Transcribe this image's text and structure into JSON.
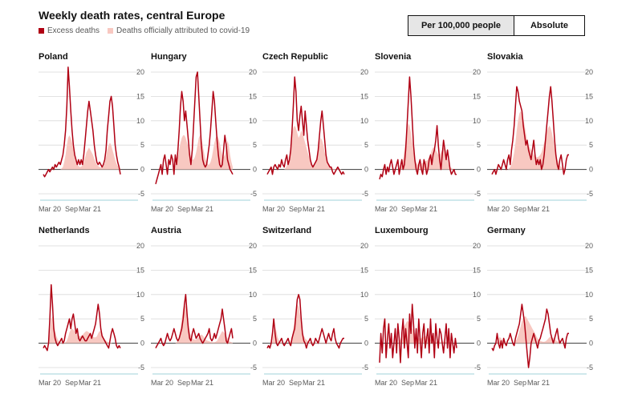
{
  "title": "Weekly death rates, central Europe",
  "legend": {
    "excess": "Excess deaths",
    "official": "Deaths officially attributed to covid-19"
  },
  "toggle": {
    "per100k": "Per 100,000 people",
    "absolute": "Absolute"
  },
  "colors": {
    "excess": "#b00013",
    "official": "#f8c8c1",
    "grid": "#d9d9d9",
    "zero": "#3a3a3a",
    "xaxis": "#9fd0d9"
  },
  "axis": {
    "y_ticks": [
      "20",
      "15",
      "10",
      "5",
      "0",
      "-5"
    ],
    "x_ticks": [
      "Mar 20",
      "Sep",
      "Mar 21"
    ]
  },
  "chart_data": {
    "type": "line",
    "title": "Weekly death rates, central Europe",
    "ylabel": "Per 100,000 people",
    "ylim": [
      -5,
      20
    ],
    "x_start": "Mar 20",
    "weeks": 60,
    "panels": [
      {
        "name": "Poland",
        "excess": [
          -1,
          -1.5,
          -1,
          -0.5,
          0,
          -0.5,
          0,
          0.5,
          0,
          1,
          0.5,
          1,
          1.5,
          1,
          2,
          3,
          5,
          8,
          13,
          21,
          17,
          12,
          8,
          5,
          3,
          2,
          1,
          2,
          1,
          2,
          1,
          3,
          6,
          9,
          12,
          14,
          12,
          10,
          8,
          5,
          3,
          1.5,
          1,
          1.5,
          1,
          0.5,
          1,
          2,
          4,
          8,
          11,
          14,
          15,
          13,
          9,
          5,
          3,
          1.5,
          0.5,
          -1
        ],
        "official": [
          0,
          0,
          0,
          0,
          0,
          0,
          0,
          0,
          0,
          0,
          0,
          0,
          0,
          0,
          0.2,
          0.5,
          1.5,
          3,
          5,
          6.5,
          7,
          6.5,
          5.5,
          4,
          2.5,
          1.5,
          1,
          0.7,
          0.5,
          0.6,
          0.8,
          1.5,
          2.5,
          3.5,
          4,
          4.5,
          4,
          3.5,
          3,
          2.2,
          1.5,
          1,
          0.7,
          0.5,
          0.4,
          0.4,
          0.6,
          1.2,
          2.5,
          4,
          5,
          5.5,
          5,
          4,
          3,
          2,
          1.2,
          0.7,
          0.4,
          0.2
        ]
      },
      {
        "name": "Hungary",
        "excess": [
          -3,
          -2,
          -1,
          0,
          1,
          -1,
          2,
          3,
          1,
          -1,
          2,
          1,
          3,
          2,
          -1,
          3,
          1,
          4,
          8,
          13,
          16,
          14,
          10,
          12,
          9,
          6,
          3,
          1,
          4,
          9,
          14,
          19,
          20,
          15,
          10,
          5,
          2,
          1,
          0.5,
          1,
          3,
          5,
          8,
          12,
          16,
          14,
          10,
          6,
          3,
          1,
          0.5,
          1,
          4,
          7,
          5,
          2,
          1,
          0,
          -0.5,
          -1
        ],
        "official": [
          0,
          0,
          0,
          0,
          0,
          0,
          0,
          0,
          0,
          0,
          0,
          0,
          0,
          0.2,
          0.5,
          1,
          1.5,
          2.5,
          4,
          5.5,
          6.5,
          7,
          7,
          6.5,
          5.5,
          4.5,
          3.5,
          2.5,
          2,
          2,
          2.5,
          3.5,
          5,
          6.5,
          7,
          6.5,
          5,
          3.5,
          2.2,
          1.5,
          1,
          1,
          1.5,
          2.5,
          4,
          5.5,
          6.5,
          7,
          6.5,
          5.5,
          4,
          3,
          2.5,
          3,
          4.5,
          6,
          5,
          3,
          1.5,
          0.5
        ]
      },
      {
        "name": "Czech Republic",
        "excess": [
          -1,
          -0.5,
          0,
          0.5,
          -1,
          0.5,
          1,
          0.5,
          0,
          1,
          0.5,
          2,
          1,
          0.5,
          2,
          3,
          1,
          2,
          4,
          8,
          13,
          19,
          16,
          10,
          8,
          11,
          13,
          10,
          7,
          12,
          9,
          6,
          4,
          2,
          1,
          0.5,
          1,
          1.5,
          2,
          4,
          7,
          10,
          12,
          9,
          6,
          3,
          1.5,
          1,
          0.5,
          0.5,
          -0.5,
          -1,
          -0.5,
          0,
          0.5,
          0,
          -0.5,
          -1,
          -0.5,
          -1
        ],
        "official": [
          0,
          0,
          0,
          0,
          0,
          0,
          0,
          0,
          0,
          0,
          0,
          0,
          0,
          0,
          0.3,
          0.8,
          1.5,
          3,
          5,
          7,
          8.5,
          9,
          8.5,
          7.5,
          6.5,
          7,
          8,
          7.5,
          6.5,
          5.5,
          4.5,
          3.5,
          2.5,
          1.5,
          1,
          0.8,
          1,
          1.5,
          2.5,
          4,
          5.5,
          6.5,
          6,
          5,
          3.5,
          2.5,
          1.5,
          1,
          0.6,
          0.4,
          0.2,
          0.1,
          0.1,
          0.1,
          0.1,
          0.1,
          0.1,
          0,
          0,
          0
        ]
      },
      {
        "name": "Slovenia",
        "excess": [
          -2,
          -1,
          -1.5,
          0,
          1,
          -1,
          0.5,
          -0.5,
          1,
          2,
          0.5,
          -1,
          0,
          1,
          2,
          -1,
          0.5,
          2,
          0,
          1,
          4,
          9,
          14,
          19,
          15,
          10,
          5,
          2,
          0,
          -1,
          1,
          2,
          0,
          -1,
          2,
          1,
          -1,
          0,
          2,
          3,
          1,
          3,
          4,
          6,
          9,
          5,
          2,
          0,
          3,
          6,
          4,
          2,
          4,
          2,
          0,
          -1,
          -0.5,
          0,
          -1,
          -1
        ],
        "official": [
          0,
          0,
          0,
          0,
          0,
          0,
          0,
          0,
          0,
          0,
          0,
          0,
          0,
          0,
          0,
          0.2,
          0.5,
          1,
          2,
          4,
          6,
          8,
          9.5,
          9,
          7.5,
          5.5,
          3.5,
          2.2,
          1.4,
          1,
          1,
          1,
          1.2,
          1.3,
          1.5,
          1.7,
          1.8,
          2,
          2.5,
          3.2,
          4,
          4.5,
          4.5,
          4,
          3.5,
          3,
          3,
          3.5,
          4,
          4.5,
          4,
          3,
          2,
          1,
          0.5,
          0.3,
          0.1,
          0,
          0,
          0
        ]
      },
      {
        "name": "Slovakia",
        "excess": [
          -1,
          -0.5,
          0,
          -1,
          0,
          1,
          0.5,
          0,
          1,
          2,
          1,
          0,
          2,
          3,
          1,
          4,
          6,
          9,
          13,
          17,
          16,
          14,
          13,
          12,
          9,
          7,
          5,
          6,
          4,
          3,
          2,
          4,
          6,
          3,
          1,
          2,
          1,
          2,
          0,
          1,
          3,
          6,
          9,
          12,
          15,
          17,
          14,
          10,
          6,
          3,
          1,
          0,
          2,
          3,
          1,
          -1,
          0,
          2,
          3,
          3
        ],
        "official": [
          0,
          0,
          0,
          0,
          0,
          0,
          0,
          0,
          0,
          0,
          0,
          0,
          0,
          0.2,
          0.5,
          1,
          2,
          3.5,
          5.5,
          8,
          10,
          11.5,
          12,
          11.5,
          10.5,
          9,
          7.5,
          6,
          5,
          4.5,
          4,
          3.5,
          3,
          2.7,
          2.5,
          2.5,
          2.7,
          3,
          3.5,
          4.5,
          5.5,
          6.5,
          7.5,
          8.5,
          9,
          8.5,
          7.5,
          6,
          4.5,
          3,
          2,
          1.2,
          0.8,
          0.5,
          0.3,
          0.2,
          0.1,
          0,
          0,
          0
        ]
      },
      {
        "name": "Netherlands",
        "excess": [
          -1,
          -0.5,
          -1,
          -1.5,
          0,
          5,
          12,
          8,
          3,
          1,
          0,
          -0.5,
          0,
          0.5,
          1,
          0,
          0.5,
          2,
          3,
          4,
          5,
          3,
          5,
          6,
          4,
          2,
          3,
          1,
          0.5,
          1,
          1.5,
          1,
          0.5,
          0.5,
          1,
          1.5,
          2,
          1,
          2,
          3,
          4,
          6,
          8,
          6,
          3,
          1.5,
          1,
          0.5,
          0,
          -0.5,
          -1,
          0.5,
          2,
          3,
          2,
          1,
          -0.5,
          -1,
          -0.5,
          -1
        ],
        "official": [
          0,
          0,
          0,
          0,
          0.5,
          2,
          5,
          5.5,
          4,
          2.5,
          1.5,
          0.8,
          0.4,
          0.2,
          0.1,
          0.1,
          0.1,
          0.2,
          0.5,
          1.2,
          2.2,
          2.8,
          3,
          2.8,
          2.4,
          2,
          1.8,
          1.6,
          1.4,
          1.5,
          1.7,
          2,
          2.3,
          2.5,
          2.4,
          2.2,
          1.8,
          1.5,
          1.3,
          1.2,
          1.2,
          1.4,
          2,
          2.5,
          2.4,
          1.8,
          1.2,
          0.8,
          0.5,
          0.3,
          0.2,
          0.1,
          0.1,
          0,
          0,
          0,
          0,
          0,
          0,
          0
        ]
      },
      {
        "name": "Austria",
        "excess": [
          -1,
          -0.5,
          0,
          0.5,
          1,
          0,
          -0.5,
          0,
          1,
          2,
          1,
          0.5,
          1,
          2,
          3,
          2,
          1,
          0.5,
          1,
          2,
          3,
          5,
          8,
          10,
          6,
          3,
          1,
          0.5,
          2,
          3,
          2,
          1,
          1.5,
          2,
          1,
          0.5,
          0,
          0.5,
          1,
          1.5,
          2,
          3,
          1,
          0.5,
          1,
          2,
          1,
          2,
          3,
          4,
          5,
          7,
          5,
          3,
          0.5,
          0,
          1,
          2,
          3,
          1
        ],
        "official": [
          0,
          0,
          0,
          0,
          0,
          0,
          0,
          0,
          0,
          0,
          0,
          0,
          0,
          0,
          0,
          0,
          0.2,
          0.5,
          1.5,
          3,
          5,
          7,
          8,
          7.5,
          6,
          4,
          2.5,
          1.5,
          1,
          0.8,
          0.7,
          0.7,
          1,
          1.3,
          1.6,
          1.8,
          1.6,
          1.2,
          0.8,
          0.6,
          0.5,
          0.4,
          0.3,
          0.2,
          0.2,
          0.2,
          0.3,
          0.5,
          1,
          1.5,
          2,
          2.5,
          2.3,
          2,
          1.5,
          1,
          0.6,
          0.3,
          0.2,
          0.1
        ]
      },
      {
        "name": "Switzerland",
        "excess": [
          -1,
          -0.5,
          -1,
          0,
          2,
          5,
          2,
          0,
          -0.5,
          0,
          0.5,
          1,
          0,
          -0.5,
          0,
          0.5,
          1,
          0,
          -0.5,
          1,
          2,
          3,
          6,
          9,
          10,
          9,
          5,
          2,
          0.5,
          0,
          -1,
          0,
          0.5,
          1,
          0,
          -0.5,
          0,
          1,
          0.5,
          0,
          1,
          2,
          3,
          2,
          1,
          0,
          1,
          2,
          1,
          0.5,
          2,
          3,
          1,
          0,
          -0.5,
          -1,
          0,
          0.5,
          1,
          1
        ],
        "official": [
          0,
          0,
          0,
          0,
          0.5,
          2.5,
          3.5,
          2.5,
          1.2,
          0.6,
          0.3,
          0.1,
          0.1,
          0,
          0,
          0,
          0,
          0.1,
          0.5,
          1.5,
          3,
          5,
          7,
          8,
          7.5,
          6,
          4,
          2.5,
          1.5,
          1,
          0.7,
          0.5,
          0.3,
          0.2,
          0.2,
          0.2,
          0.1,
          0.1,
          0.1,
          0.1,
          0.1,
          0.1,
          0.1,
          0.1,
          0.1,
          0.1,
          0.1,
          0.1,
          0.1,
          0.1,
          0.1,
          0.1,
          0.1,
          0,
          0,
          0,
          0,
          0,
          0,
          0
        ]
      },
      {
        "name": "Luxembourg",
        "excess": [
          -4,
          2,
          -2,
          3,
          5,
          -3,
          1,
          4,
          -1,
          2,
          -3,
          0,
          3,
          -2,
          4,
          1,
          -4,
          2,
          5,
          -1,
          3,
          0,
          -3,
          6,
          2,
          8,
          4,
          -1,
          3,
          -2,
          5,
          1,
          -3,
          2,
          4,
          -1,
          1,
          3,
          -2,
          5,
          0,
          2,
          -3,
          4,
          1,
          -1,
          3,
          2,
          0,
          -2,
          1,
          4,
          -1,
          3,
          -3,
          2,
          0,
          -2,
          1,
          -1
        ],
        "official": [
          0,
          0,
          0,
          0,
          0,
          0,
          0,
          0,
          0,
          0,
          0,
          0,
          0,
          0,
          0,
          0.3,
          0.8,
          1.5,
          2.5,
          3.5,
          4,
          4.5,
          4.5,
          4,
          3.5,
          3,
          2.5,
          2,
          1.5,
          1.2,
          1,
          1,
          1,
          1.2,
          1.4,
          1.5,
          1.4,
          1.2,
          1,
          0.8,
          0.6,
          0.5,
          0.4,
          0.3,
          0.3,
          0.3,
          0.3,
          0.3,
          0.3,
          0.3,
          0.3,
          0.3,
          0.3,
          0.3,
          0.2,
          0.2,
          0.1,
          0,
          0,
          0
        ]
      },
      {
        "name": "Germany",
        "excess": [
          -1,
          -1.5,
          -0.5,
          0,
          2,
          0,
          -1,
          0.5,
          -1,
          1,
          0,
          -0.5,
          0.5,
          1,
          2,
          1,
          0,
          -0.5,
          1,
          2,
          3,
          4,
          6,
          8,
          6,
          4,
          1,
          -2,
          -5,
          -3,
          0,
          1,
          2,
          1,
          0,
          -1,
          0.5,
          1,
          2,
          3,
          4,
          5,
          7,
          6,
          4,
          2,
          1,
          0,
          1,
          2,
          3,
          1,
          0,
          0.5,
          1,
          0,
          -1,
          1,
          2,
          2
        ],
        "official": [
          0,
          0,
          0,
          0,
          0.3,
          1,
          1.3,
          1,
          0.6,
          0.3,
          0.2,
          0.1,
          0.1,
          0,
          0,
          0,
          0,
          0.1,
          0.3,
          0.8,
          1.5,
          2.5,
          3.5,
          4.5,
          5,
          5.5,
          5.5,
          5,
          4.5,
          4,
          3.5,
          3,
          2.5,
          2,
          1.5,
          1,
          0.7,
          0.5,
          0.4,
          0.3,
          0.3,
          0.4,
          0.6,
          0.9,
          1.2,
          1.3,
          1.2,
          1,
          0.8,
          0.6,
          0.4,
          0.3,
          0.2,
          0.1,
          0.1,
          0.1,
          0,
          0,
          0,
          0
        ]
      }
    ]
  }
}
